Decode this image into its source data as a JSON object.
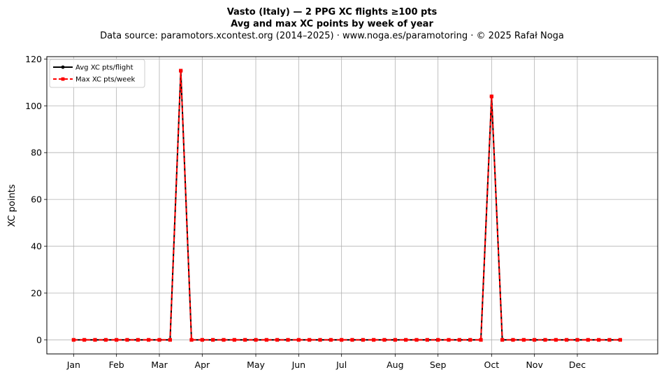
{
  "chart_data": {
    "type": "line",
    "title": "Vasto (Italy)  —  2 PPG XC flights ≥100 pts",
    "subtitle": "Avg and max XC points by week of year",
    "source_note": "Data source: paramotors.xcontest.org (2014–2025)  ·  www.noga.es/paramotoring  ·  © 2025 Rafał Noga",
    "xlabel": "",
    "ylabel": "XC points",
    "x_ticks": [
      {
        "label": "Jan",
        "week": 1
      },
      {
        "label": "Feb",
        "week": 5
      },
      {
        "label": "Mar",
        "week": 9
      },
      {
        "label": "Apr",
        "week": 13
      },
      {
        "label": "May",
        "week": 18
      },
      {
        "label": "Jun",
        "week": 22
      },
      {
        "label": "Jul",
        "week": 26
      },
      {
        "label": "Aug",
        "week": 31
      },
      {
        "label": "Sep",
        "week": 35
      },
      {
        "label": "Oct",
        "week": 40
      },
      {
        "label": "Nov",
        "week": 44
      },
      {
        "label": "Dec",
        "week": 48
      }
    ],
    "xlim": [
      -1.5,
      55.5
    ],
    "ylim": [
      -6,
      121
    ],
    "y_ticks": [
      0,
      20,
      40,
      60,
      80,
      100,
      120
    ],
    "grid": true,
    "legend_position": "top-left",
    "weeks": [
      1,
      2,
      3,
      4,
      5,
      6,
      7,
      8,
      9,
      10,
      11,
      12,
      13,
      14,
      15,
      16,
      17,
      18,
      19,
      20,
      21,
      22,
      23,
      24,
      25,
      26,
      27,
      28,
      29,
      30,
      31,
      32,
      33,
      34,
      35,
      36,
      37,
      38,
      39,
      40,
      41,
      42,
      43,
      44,
      45,
      46,
      47,
      48,
      49,
      50,
      51,
      52
    ],
    "series": [
      {
        "name": "Avg XC pts/flight",
        "color": "#000000",
        "style": "solid",
        "marker": "circle",
        "values": [
          0,
          0,
          0,
          0,
          0,
          0,
          0,
          0,
          0,
          0,
          115,
          0,
          0,
          0,
          0,
          0,
          0,
          0,
          0,
          0,
          0,
          0,
          0,
          0,
          0,
          0,
          0,
          0,
          0,
          0,
          0,
          0,
          0,
          0,
          0,
          0,
          0,
          0,
          0,
          104,
          0,
          0,
          0,
          0,
          0,
          0,
          0,
          0,
          0,
          0,
          0,
          0
        ]
      },
      {
        "name": "Max XC pts/week",
        "color": "#ff0000",
        "style": "dashed",
        "marker": "square",
        "values": [
          0,
          0,
          0,
          0,
          0,
          0,
          0,
          0,
          0,
          0,
          115,
          0,
          0,
          0,
          0,
          0,
          0,
          0,
          0,
          0,
          0,
          0,
          0,
          0,
          0,
          0,
          0,
          0,
          0,
          0,
          0,
          0,
          0,
          0,
          0,
          0,
          0,
          0,
          0,
          104,
          0,
          0,
          0,
          0,
          0,
          0,
          0,
          0,
          0,
          0,
          0,
          0
        ]
      }
    ]
  }
}
